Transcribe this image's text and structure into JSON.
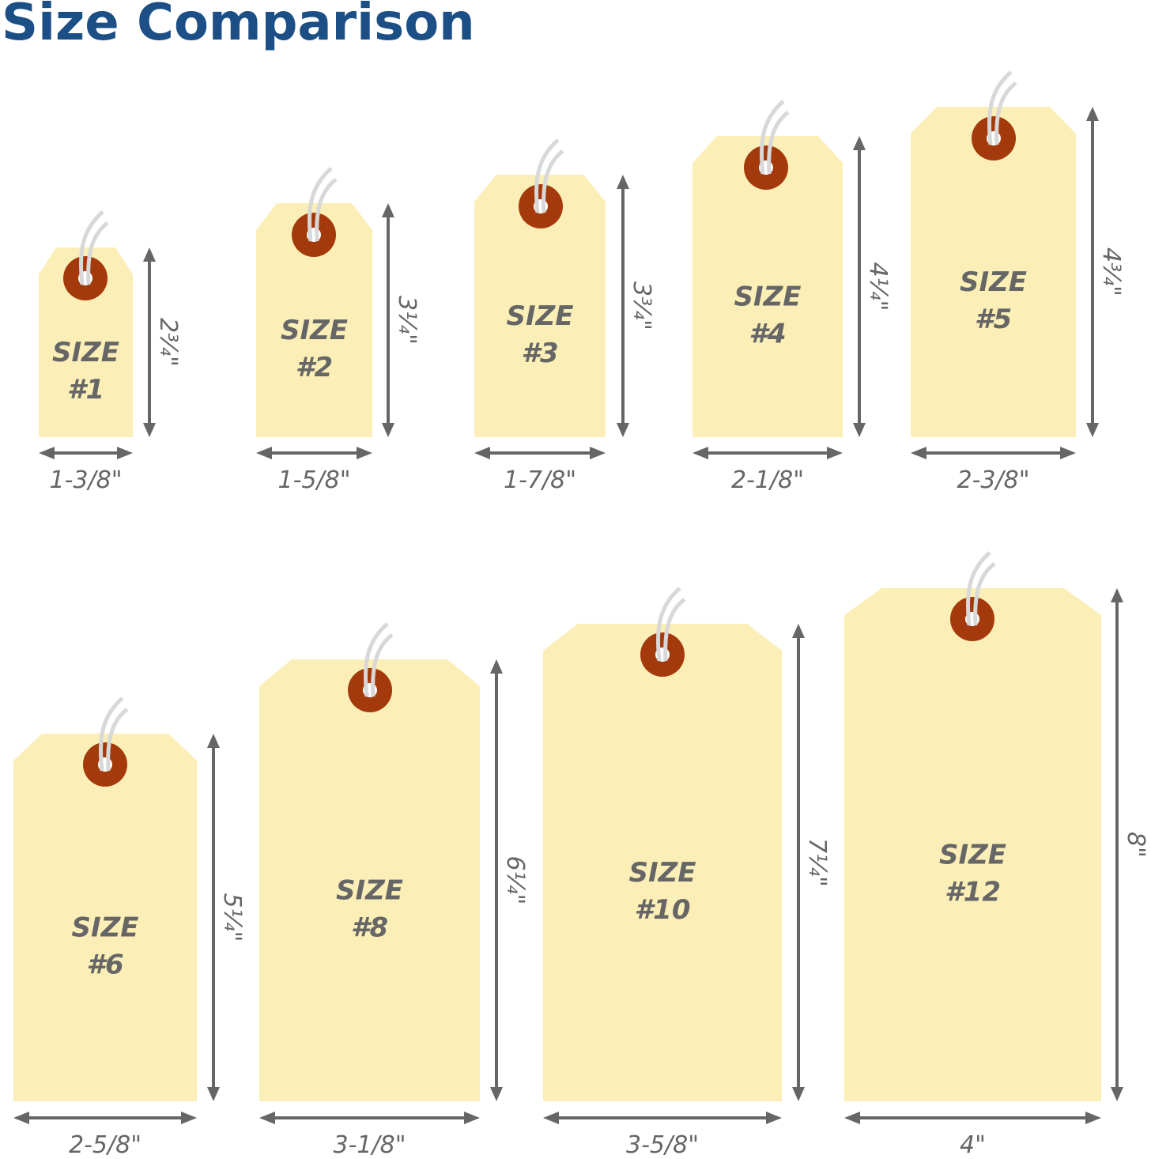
{
  "title": "Size Comparison",
  "colors": {
    "title": "#1b4f86",
    "tag": "#fbefb7",
    "eyelet": "#a43a0c",
    "arrow": "#666666",
    "string": "#d8d8d8"
  },
  "tag_word": "SIZE",
  "tags": [
    {
      "number": "#1",
      "width": "1-3/8\"",
      "height": "2¾\""
    },
    {
      "number": "#2",
      "width": "1-5/8\"",
      "height": "3¼\""
    },
    {
      "number": "#3",
      "width": "1-7/8\"",
      "height": "3¾\""
    },
    {
      "number": "#4",
      "width": "2-1/8\"",
      "height": "4¼\""
    },
    {
      "number": "#5",
      "width": "2-3/8\"",
      "height": "4¾\""
    },
    {
      "number": "#6",
      "width": "2-5/8\"",
      "height": "5¼\""
    },
    {
      "number": "#8",
      "width": "3-1/8\"",
      "height": "6¼\""
    },
    {
      "number": "#10",
      "width": "3-5/8\"",
      "height": "7¼\""
    },
    {
      "number": "#12",
      "width": "4\"",
      "height": "8\""
    }
  ]
}
